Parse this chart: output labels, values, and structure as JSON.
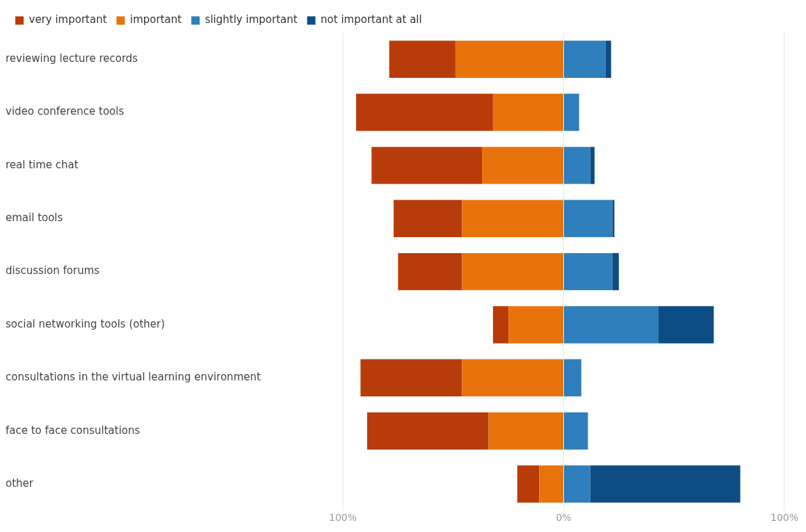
{
  "chart_data": {
    "type": "bar",
    "orientation": "horizontal",
    "stacked": true,
    "categories": [
      "reviewing lecture records",
      "video conference tools",
      "real time chat",
      "email tools",
      "discussion forums",
      "social networking tools (other)",
      "consultations in the virtual learning environment",
      "face to face consultations",
      "other"
    ],
    "series": [
      {
        "name": "important",
        "color": "#e8730c",
        "values": [
          -49,
          -32,
          -37,
          -46,
          -46,
          -25,
          -46,
          -34,
          -11
        ]
      },
      {
        "name": "very important",
        "color": "#b83c0a",
        "values": [
          -30,
          -62,
          -50,
          -31,
          -29,
          -7,
          -46,
          -55,
          -10
        ]
      },
      {
        "name": "slightly important",
        "color": "#2e7fbb",
        "values": [
          19,
          7,
          12,
          22,
          22,
          43,
          8,
          11,
          12
        ]
      },
      {
        "name": "not important at all",
        "color": "#0e4c84",
        "values": [
          2.5,
          0,
          2,
          1,
          3,
          25,
          0,
          0,
          68
        ]
      }
    ],
    "xlim": [
      -100,
      100
    ],
    "xticks": [
      {
        "value": -100,
        "label": "100%"
      },
      {
        "value": 0,
        "label": "0%"
      },
      {
        "value": 100,
        "label": "100%"
      }
    ],
    "grid": "x",
    "legend": "top left"
  }
}
